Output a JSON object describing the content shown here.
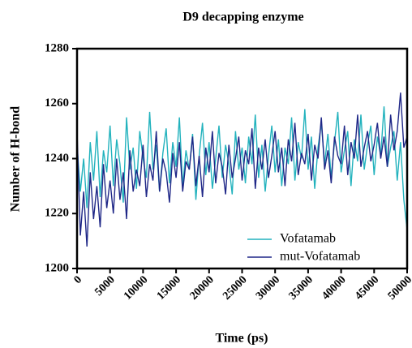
{
  "chart_data": {
    "type": "line",
    "title": "D9 decapping enzyme",
    "xlabel": "Time (ps)",
    "ylabel": "Number of H-bond",
    "x": [
      0,
      500,
      1000,
      1500,
      2000,
      2500,
      3000,
      3500,
      4000,
      4500,
      5000,
      5500,
      6000,
      6500,
      7000,
      7500,
      8000,
      8500,
      9000,
      9500,
      10000,
      10500,
      11000,
      11500,
      12000,
      12500,
      13000,
      13500,
      14000,
      14500,
      15000,
      15500,
      16000,
      16500,
      17000,
      17500,
      18000,
      18500,
      19000,
      19500,
      20000,
      20500,
      21000,
      21500,
      22000,
      22500,
      23000,
      23500,
      24000,
      24500,
      25000,
      25500,
      26000,
      26500,
      27000,
      27500,
      28000,
      28500,
      29000,
      29500,
      30000,
      30500,
      31000,
      31500,
      32000,
      32500,
      33000,
      33500,
      34000,
      34500,
      35000,
      35500,
      36000,
      36500,
      37000,
      37500,
      38000,
      38500,
      39000,
      39500,
      40000,
      40500,
      41000,
      41500,
      42000,
      42500,
      43000,
      43500,
      44000,
      44500,
      45000,
      45500,
      46000,
      46500,
      47000,
      47500,
      48000,
      48500,
      49000,
      49500,
      50000
    ],
    "series": [
      {
        "name": "Vofatamab",
        "color": "#22b2bd",
        "values": [
          1245,
          1228,
          1240,
          1222,
          1246,
          1232,
          1250,
          1226,
          1243,
          1235,
          1252,
          1230,
          1247,
          1238,
          1224,
          1255,
          1236,
          1244,
          1229,
          1250,
          1240,
          1233,
          1257,
          1236,
          1245,
          1228,
          1242,
          1251,
          1231,
          1246,
          1237,
          1255,
          1230,
          1243,
          1236,
          1249,
          1225,
          1241,
          1253,
          1234,
          1246,
          1229,
          1240,
          1252,
          1233,
          1245,
          1238,
          1227,
          1250,
          1236,
          1244,
          1231,
          1248,
          1238,
          1256,
          1233,
          1245,
          1228,
          1241,
          1252,
          1235,
          1247,
          1230,
          1244,
          1238,
          1255,
          1232,
          1246,
          1240,
          1258,
          1236,
          1248,
          1229,
          1244,
          1253,
          1238,
          1249,
          1233,
          1246,
          1257,
          1235,
          1243,
          1250,
          1230,
          1247,
          1239,
          1256,
          1236,
          1245,
          1252,
          1234,
          1248,
          1241,
          1259,
          1237,
          1244,
          1250,
          1232,
          1246,
          1225,
          1214
        ]
      },
      {
        "name": "mut-Vofatamab",
        "color": "#1f2787",
        "values": [
          1250,
          1212,
          1228,
          1208,
          1235,
          1218,
          1230,
          1215,
          1238,
          1222,
          1232,
          1220,
          1240,
          1225,
          1235,
          1218,
          1243,
          1228,
          1236,
          1230,
          1245,
          1226,
          1238,
          1232,
          1250,
          1228,
          1240,
          1235,
          1224,
          1242,
          1233,
          1246,
          1228,
          1239,
          1236,
          1248,
          1230,
          1241,
          1226,
          1244,
          1235,
          1250,
          1231,
          1242,
          1237,
          1227,
          1245,
          1233,
          1240,
          1248,
          1232,
          1243,
          1238,
          1251,
          1229,
          1244,
          1236,
          1247,
          1233,
          1241,
          1250,
          1235,
          1244,
          1230,
          1247,
          1239,
          1253,
          1234,
          1242,
          1238,
          1249,
          1232,
          1245,
          1240,
          1255,
          1236,
          1243,
          1231,
          1248,
          1241,
          1238,
          1252,
          1234,
          1246,
          1240,
          1256,
          1237,
          1244,
          1250,
          1239,
          1245,
          1253,
          1240,
          1248,
          1237,
          1256,
          1243,
          1250,
          1264,
          1244,
          1248
        ]
      }
    ],
    "xlim": [
      0,
      50000
    ],
    "xticks": [
      0,
      5000,
      10000,
      15000,
      20000,
      25000,
      30000,
      35000,
      40000,
      45000,
      50000
    ],
    "ylim": [
      1200,
      1280
    ],
    "yticks": [
      1200,
      1220,
      1240,
      1260,
      1280
    ],
    "legend": "lower right"
  }
}
